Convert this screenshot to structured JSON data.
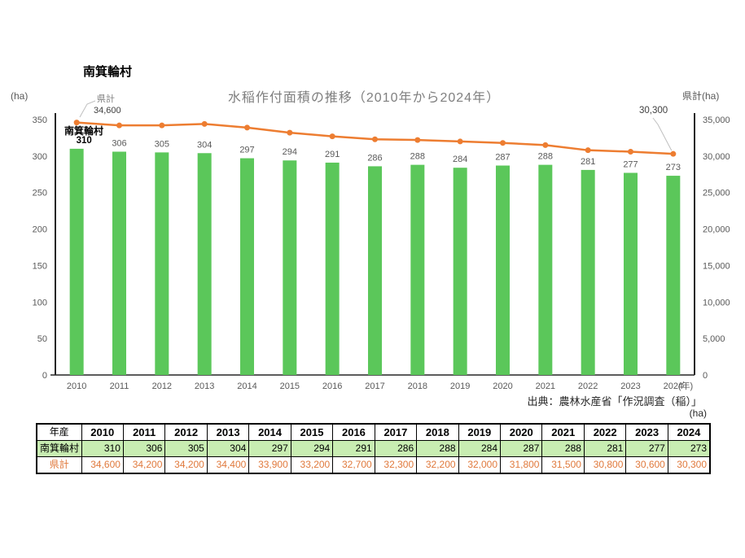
{
  "page": {
    "title": "南箕輪村",
    "source_note": "出典：農林水産省「作況調査（稲）」",
    "table_unit": "(ha)"
  },
  "chart_data": {
    "type": "bar+line",
    "title": "水稲作付面積の推移（2010年から2024年）",
    "categories": [
      "2010",
      "2011",
      "2012",
      "2013",
      "2014",
      "2015",
      "2016",
      "2017",
      "2018",
      "2019",
      "2020",
      "2021",
      "2022",
      "2023",
      "2024"
    ],
    "x_axis_suffix": "(年)",
    "grid": false,
    "legend": "none",
    "left_axis": {
      "unit": "(ha)",
      "min": 0,
      "max": 350,
      "ticks": [
        0,
        50,
        100,
        150,
        200,
        250,
        300,
        350
      ]
    },
    "right_axis": {
      "unit": "県計(ha)",
      "min": 0,
      "max": 35000,
      "ticks": [
        0,
        5000,
        10000,
        15000,
        20000,
        25000,
        30000,
        35000
      ],
      "tick_labels": [
        "0",
        "5,000",
        "10,000",
        "15,000",
        "20,000",
        "25,000",
        "30,000",
        "35,000"
      ]
    },
    "series": [
      {
        "name": "南箕輪村",
        "type": "bar",
        "axis": "left",
        "color": "#5BC75A",
        "values": [
          310,
          306,
          305,
          304,
          297,
          294,
          291,
          286,
          288,
          284,
          287,
          288,
          281,
          277,
          273
        ]
      },
      {
        "name": "県計",
        "type": "line",
        "axis": "right",
        "color": "#ED7D31",
        "values": [
          34600,
          34200,
          34200,
          34400,
          33900,
          33200,
          32700,
          32300,
          32200,
          32000,
          31800,
          31500,
          30800,
          30600,
          30300
        ]
      }
    ],
    "annotations": {
      "line_series_label": "県計",
      "line_start_value": "34,600",
      "line_end_value": "30,300",
      "bar_series_label": "南箕輪村"
    }
  },
  "table": {
    "header": [
      "年産",
      "2010",
      "2011",
      "2012",
      "2013",
      "2014",
      "2015",
      "2016",
      "2017",
      "2018",
      "2019",
      "2020",
      "2021",
      "2022",
      "2023",
      "2024"
    ],
    "rows": [
      {
        "label": "南箕輪村",
        "values": [
          "310",
          "306",
          "305",
          "304",
          "297",
          "294",
          "291",
          "286",
          "288",
          "284",
          "287",
          "288",
          "281",
          "277",
          "273"
        ]
      },
      {
        "label": "県計",
        "values": [
          "34,600",
          "34,200",
          "34,200",
          "34,400",
          "33,900",
          "33,200",
          "32,700",
          "32,300",
          "32,200",
          "32,000",
          "31,800",
          "31,500",
          "30,800",
          "30,600",
          "30,300"
        ]
      }
    ]
  },
  "colors": {
    "bar_green": "#5BC75A",
    "line_orange": "#ED7D31",
    "table_green_fill": "#C8EDB2",
    "table_orange_text": "#E0793C"
  }
}
